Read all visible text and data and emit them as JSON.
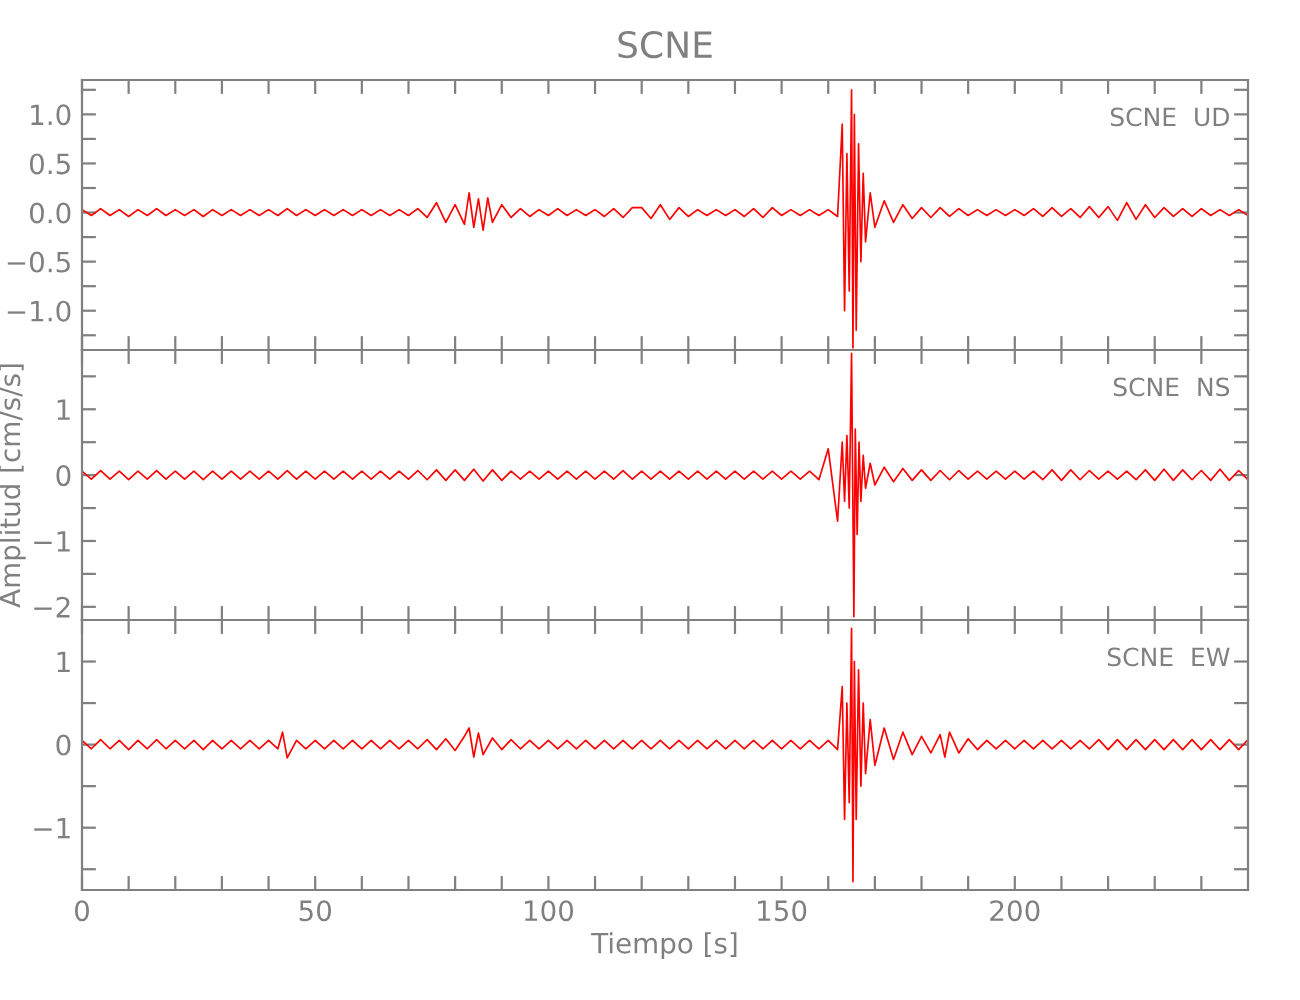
{
  "chart_data": [
    {
      "type": "line",
      "title": "SCNE",
      "annotations": [
        "SCNE  UD"
      ],
      "tick_labels": "y",
      "grid": false,
      "xlim": [
        0,
        250
      ],
      "xticks": [
        {
          "value": 0,
          "label": null
        },
        {
          "value": 10,
          "label": null
        },
        {
          "value": 20,
          "label": null
        },
        {
          "value": 30,
          "label": null
        },
        {
          "value": 40,
          "label": null
        },
        {
          "value": 50,
          "label": null
        },
        {
          "value": 60,
          "label": null
        },
        {
          "value": 70,
          "label": null
        },
        {
          "value": 80,
          "label": null
        },
        {
          "value": 90,
          "label": null
        },
        {
          "value": 100,
          "label": null
        },
        {
          "value": 110,
          "label": null
        },
        {
          "value": 120,
          "label": null
        },
        {
          "value": 130,
          "label": null
        },
        {
          "value": 140,
          "label": null
        },
        {
          "value": 150,
          "label": null
        },
        {
          "value": 160,
          "label": null
        },
        {
          "value": 170,
          "label": null
        },
        {
          "value": 180,
          "label": null
        },
        {
          "value": 190,
          "label": null
        },
        {
          "value": 200,
          "label": null
        },
        {
          "value": 210,
          "label": null
        },
        {
          "value": 220,
          "label": null
        },
        {
          "value": 230,
          "label": null
        },
        {
          "value": 240,
          "label": null
        }
      ],
      "ylim": [
        -1.4,
        1.35
      ],
      "yticks": [
        {
          "value": -1.25,
          "label": null
        },
        {
          "value": -1.0,
          "label": "−1.0"
        },
        {
          "value": -0.75,
          "label": null
        },
        {
          "value": -0.5,
          "label": "−0.5"
        },
        {
          "value": -0.25,
          "label": null
        },
        {
          "value": 0,
          "label": "0.0"
        },
        {
          "value": 0.25,
          "label": null
        },
        {
          "value": 0.5,
          "label": "0.5"
        },
        {
          "value": 0.75,
          "label": null
        },
        {
          "value": 1.0,
          "label": "1.0"
        },
        {
          "value": 1.25,
          "label": null
        }
      ],
      "series": [
        {
          "color": "#ff0000",
          "x": [
            0,
            2,
            4,
            6,
            8,
            10,
            12,
            14,
            16,
            18,
            20,
            22,
            24,
            26,
            28,
            30,
            32,
            34,
            36,
            38,
            40,
            42,
            44,
            46,
            48,
            50,
            52,
            54,
            56,
            58,
            60,
            62,
            64,
            66,
            68,
            70,
            72,
            74,
            76,
            78,
            80,
            82,
            83,
            84,
            85,
            86,
            87,
            88,
            90,
            92,
            94,
            96,
            98,
            100,
            102,
            104,
            106,
            108,
            110,
            112,
            114,
            116,
            118,
            120,
            122,
            124,
            126,
            128,
            130,
            132,
            134,
            136,
            138,
            140,
            142,
            144,
            146,
            148,
            150,
            152,
            154,
            156,
            158,
            160,
            162,
            163,
            163.5,
            164,
            164.5,
            165,
            165.3,
            165.6,
            166,
            166.5,
            167,
            167.5,
            168,
            169,
            170,
            172,
            174,
            176,
            178,
            180,
            182,
            184,
            186,
            188,
            190,
            192,
            194,
            196,
            198,
            200,
            202,
            204,
            206,
            208,
            210,
            212,
            214,
            216,
            218,
            220,
            222,
            224,
            226,
            228,
            230,
            232,
            234,
            236,
            238,
            240,
            242,
            244,
            246,
            248,
            250
          ],
          "values": [
            0.03,
            -0.03,
            0.04,
            -0.03,
            0.03,
            -0.04,
            0.03,
            -0.03,
            0.04,
            -0.03,
            0.03,
            -0.03,
            0.03,
            -0.04,
            0.03,
            -0.03,
            0.03,
            -0.03,
            0.03,
            -0.03,
            0.03,
            -0.03,
            0.04,
            -0.03,
            0.03,
            -0.03,
            0.03,
            -0.03,
            0.03,
            -0.03,
            0.03,
            -0.03,
            0.03,
            -0.03,
            0.03,
            -0.03,
            0.04,
            -0.05,
            0.1,
            -0.1,
            0.08,
            -0.12,
            0.2,
            -0.15,
            0.14,
            -0.18,
            0.15,
            -0.1,
            0.08,
            -0.05,
            0.04,
            -0.04,
            0.03,
            -0.03,
            0.04,
            -0.03,
            0.03,
            -0.03,
            0.03,
            -0.04,
            0.04,
            -0.05,
            0.05,
            0.05,
            -0.06,
            0.08,
            -0.07,
            0.05,
            -0.04,
            0.03,
            -0.03,
            0.03,
            -0.03,
            0.03,
            -0.04,
            0.04,
            -0.05,
            0.05,
            -0.03,
            0.03,
            -0.03,
            0.03,
            -0.03,
            0.03,
            -0.04,
            0.9,
            -1.0,
            0.6,
            -0.8,
            1.25,
            -1.38,
            1.0,
            -1.2,
            0.7,
            -0.5,
            0.4,
            -0.3,
            0.2,
            -0.15,
            0.12,
            -0.1,
            0.08,
            -0.06,
            0.05,
            -0.05,
            0.05,
            -0.04,
            0.04,
            -0.03,
            0.03,
            -0.03,
            0.03,
            -0.03,
            0.03,
            -0.03,
            0.04,
            -0.04,
            0.05,
            -0.04,
            0.04,
            -0.05,
            0.06,
            -0.05,
            0.06,
            -0.08,
            0.1,
            -0.07,
            0.08,
            -0.05,
            0.05,
            -0.04,
            0.04,
            -0.04,
            0.04,
            -0.03,
            0.03,
            -0.03,
            0.03,
            -0.03
          ]
        }
      ]
    },
    {
      "type": "line",
      "ylabel": "Amplitud [cm/s/s]",
      "annotations": [
        "SCNE  NS"
      ],
      "tick_labels": "y",
      "grid": false,
      "xlim": [
        0,
        250
      ],
      "xticks": [
        {
          "value": 0,
          "label": null
        },
        {
          "value": 10,
          "label": null
        },
        {
          "value": 20,
          "label": null
        },
        {
          "value": 30,
          "label": null
        },
        {
          "value": 40,
          "label": null
        },
        {
          "value": 50,
          "label": null
        },
        {
          "value": 60,
          "label": null
        },
        {
          "value": 70,
          "label": null
        },
        {
          "value": 80,
          "label": null
        },
        {
          "value": 90,
          "label": null
        },
        {
          "value": 100,
          "label": null
        },
        {
          "value": 110,
          "label": null
        },
        {
          "value": 120,
          "label": null
        },
        {
          "value": 130,
          "label": null
        },
        {
          "value": 140,
          "label": null
        },
        {
          "value": 150,
          "label": null
        },
        {
          "value": 160,
          "label": null
        },
        {
          "value": 170,
          "label": null
        },
        {
          "value": 180,
          "label": null
        },
        {
          "value": 190,
          "label": null
        },
        {
          "value": 200,
          "label": null
        },
        {
          "value": 210,
          "label": null
        },
        {
          "value": 220,
          "label": null
        },
        {
          "value": 230,
          "label": null
        },
        {
          "value": 240,
          "label": null
        }
      ],
      "ylim": [
        -2.2,
        1.9
      ],
      "yticks": [
        {
          "value": -2,
          "label": "−2"
        },
        {
          "value": -1.5,
          "label": null
        },
        {
          "value": -1,
          "label": "−1"
        },
        {
          "value": -0.5,
          "label": null
        },
        0,
        {
          "value": 0.5,
          "label": null
        },
        1,
        {
          "value": 1.5,
          "label": null
        }
      ],
      "series": [
        {
          "color": "#ff0000",
          "x": [
            0,
            2,
            4,
            6,
            8,
            10,
            12,
            14,
            16,
            18,
            20,
            22,
            24,
            26,
            28,
            30,
            32,
            34,
            36,
            38,
            40,
            42,
            44,
            46,
            48,
            50,
            52,
            54,
            56,
            58,
            60,
            62,
            64,
            66,
            68,
            70,
            72,
            74,
            76,
            78,
            80,
            82,
            84,
            86,
            88,
            90,
            92,
            94,
            96,
            98,
            100,
            102,
            104,
            106,
            108,
            110,
            112,
            114,
            116,
            118,
            120,
            122,
            124,
            126,
            128,
            130,
            132,
            134,
            136,
            138,
            140,
            142,
            144,
            146,
            148,
            150,
            152,
            154,
            156,
            158,
            160,
            162,
            163,
            163.5,
            164,
            164.5,
            165,
            165.5,
            165.8,
            166.2,
            166.6,
            167,
            167.5,
            168,
            169,
            170,
            172,
            174,
            176,
            178,
            180,
            182,
            184,
            186,
            188,
            190,
            192,
            194,
            196,
            198,
            200,
            202,
            204,
            206,
            208,
            210,
            212,
            214,
            216,
            218,
            220,
            222,
            224,
            226,
            228,
            230,
            232,
            234,
            236,
            238,
            240,
            242,
            244,
            246,
            248,
            250
          ],
          "values": [
            0.06,
            -0.06,
            0.07,
            -0.06,
            0.06,
            -0.07,
            0.06,
            -0.06,
            0.07,
            -0.06,
            0.06,
            -0.06,
            0.06,
            -0.07,
            0.06,
            -0.06,
            0.06,
            -0.06,
            0.06,
            -0.06,
            0.06,
            -0.06,
            0.07,
            -0.06,
            0.06,
            -0.06,
            0.06,
            -0.06,
            0.06,
            -0.06,
            0.06,
            -0.06,
            0.06,
            -0.06,
            0.06,
            -0.06,
            0.07,
            -0.07,
            0.08,
            -0.08,
            0.08,
            -0.08,
            0.09,
            -0.09,
            0.08,
            -0.08,
            0.06,
            -0.06,
            0.06,
            -0.06,
            0.06,
            -0.06,
            0.06,
            -0.06,
            0.06,
            -0.06,
            0.06,
            -0.06,
            0.07,
            -0.06,
            0.06,
            -0.06,
            0.06,
            -0.06,
            0.06,
            -0.06,
            0.06,
            -0.06,
            0.06,
            -0.06,
            0.06,
            -0.06,
            0.06,
            -0.06,
            0.06,
            -0.06,
            0.06,
            -0.06,
            0.06,
            -0.07,
            0.4,
            -0.7,
            0.5,
            -0.4,
            0.6,
            -0.5,
            1.85,
            -2.15,
            0.7,
            -0.9,
            0.5,
            -0.4,
            0.3,
            -0.2,
            0.18,
            -0.15,
            0.12,
            -0.1,
            0.1,
            -0.08,
            0.08,
            -0.08,
            0.07,
            -0.07,
            0.07,
            -0.06,
            0.06,
            -0.06,
            0.06,
            -0.06,
            0.06,
            -0.06,
            0.06,
            -0.07,
            0.08,
            -0.08,
            0.08,
            -0.07,
            0.07,
            -0.06,
            0.06,
            -0.06,
            0.06,
            -0.07,
            0.08,
            -0.08,
            0.09,
            -0.08,
            0.08,
            -0.07,
            0.07,
            -0.08,
            0.09,
            -0.08,
            0.07,
            -0.07
          ]
        }
      ]
    },
    {
      "type": "line",
      "xlabel": "Tiempo [s]",
      "annotations": [
        "SCNE  EW"
      ],
      "grid": false,
      "xlim": [
        0,
        250
      ],
      "xticks": [
        0,
        {
          "value": 10,
          "label": null
        },
        {
          "value": 20,
          "label": null
        },
        {
          "value": 30,
          "label": null
        },
        {
          "value": 40,
          "label": null
        },
        50,
        {
          "value": 60,
          "label": null
        },
        {
          "value": 70,
          "label": null
        },
        {
          "value": 80,
          "label": null
        },
        {
          "value": 90,
          "label": null
        },
        100,
        {
          "value": 110,
          "label": null
        },
        {
          "value": 120,
          "label": null
        },
        {
          "value": 130,
          "label": null
        },
        {
          "value": 140,
          "label": null
        },
        150,
        {
          "value": 160,
          "label": null
        },
        {
          "value": 170,
          "label": null
        },
        {
          "value": 180,
          "label": null
        },
        {
          "value": 190,
          "label": null
        },
        200,
        {
          "value": 210,
          "label": null
        },
        {
          "value": 220,
          "label": null
        },
        {
          "value": 230,
          "label": null
        },
        {
          "value": 240,
          "label": null
        }
      ],
      "ylim": [
        -1.75,
        1.5
      ],
      "yticks": [
        {
          "value": -1.5,
          "label": null
        },
        {
          "value": -1,
          "label": "−1"
        },
        {
          "value": -0.5,
          "label": null
        },
        0,
        {
          "value": 0.5,
          "label": null
        },
        1
      ],
      "series": [
        {
          "color": "#ff0000",
          "x": [
            0,
            2,
            4,
            6,
            8,
            10,
            12,
            14,
            16,
            18,
            20,
            22,
            24,
            26,
            28,
            30,
            32,
            34,
            36,
            38,
            40,
            42,
            43,
            44,
            46,
            48,
            50,
            52,
            54,
            56,
            58,
            60,
            62,
            64,
            66,
            68,
            70,
            72,
            74,
            76,
            78,
            80,
            82,
            83,
            84,
            85,
            86,
            88,
            90,
            92,
            94,
            96,
            98,
            100,
            102,
            104,
            106,
            108,
            110,
            112,
            114,
            116,
            118,
            120,
            122,
            124,
            126,
            128,
            130,
            132,
            134,
            136,
            138,
            140,
            142,
            144,
            146,
            148,
            150,
            152,
            154,
            156,
            158,
            160,
            162,
            163,
            163.5,
            164,
            164.5,
            165,
            165.3,
            165.6,
            166,
            166.5,
            167,
            167.5,
            168,
            169,
            170,
            172,
            174,
            176,
            178,
            180,
            182,
            184,
            185,
            186,
            188,
            190,
            192,
            194,
            196,
            198,
            200,
            202,
            204,
            206,
            208,
            210,
            212,
            214,
            216,
            218,
            220,
            222,
            224,
            226,
            228,
            230,
            232,
            234,
            236,
            238,
            240,
            242,
            244,
            246,
            248,
            250
          ],
          "values": [
            0.05,
            -0.05,
            0.06,
            -0.05,
            0.05,
            -0.06,
            0.05,
            -0.05,
            0.06,
            -0.05,
            0.05,
            -0.05,
            0.05,
            -0.06,
            0.05,
            -0.05,
            0.05,
            -0.05,
            0.05,
            -0.05,
            0.05,
            -0.05,
            0.15,
            -0.16,
            0.05,
            -0.05,
            0.05,
            -0.05,
            0.05,
            -0.05,
            0.05,
            -0.05,
            0.05,
            -0.05,
            0.05,
            -0.05,
            0.05,
            -0.05,
            0.06,
            -0.06,
            0.07,
            -0.07,
            0.1,
            0.2,
            -0.15,
            0.14,
            -0.12,
            0.08,
            -0.06,
            0.06,
            -0.05,
            0.05,
            -0.05,
            0.05,
            -0.05,
            0.05,
            -0.05,
            0.05,
            -0.05,
            0.05,
            -0.05,
            0.05,
            -0.05,
            0.05,
            -0.05,
            0.05,
            -0.05,
            0.05,
            -0.05,
            0.05,
            -0.05,
            0.05,
            -0.05,
            0.05,
            -0.05,
            0.05,
            -0.05,
            0.05,
            -0.05,
            0.05,
            -0.05,
            0.05,
            -0.05,
            0.05,
            -0.06,
            0.7,
            -0.9,
            0.5,
            -0.7,
            1.4,
            -1.65,
            1.0,
            -0.9,
            0.9,
            -0.5,
            0.5,
            -0.35,
            0.3,
            -0.25,
            0.2,
            -0.18,
            0.15,
            -0.12,
            0.1,
            -0.1,
            0.12,
            -0.15,
            0.15,
            -0.1,
            0.07,
            -0.06,
            0.05,
            -0.05,
            0.05,
            -0.05,
            0.05,
            -0.05,
            0.05,
            -0.05,
            0.05,
            -0.05,
            0.05,
            -0.05,
            0.06,
            -0.06,
            0.06,
            -0.06,
            0.06,
            -0.06,
            0.06,
            -0.06,
            0.06,
            -0.06,
            0.06,
            -0.06,
            0.06,
            -0.06,
            0.06,
            -0.06,
            0.06
          ]
        }
      ]
    }
  ]
}
